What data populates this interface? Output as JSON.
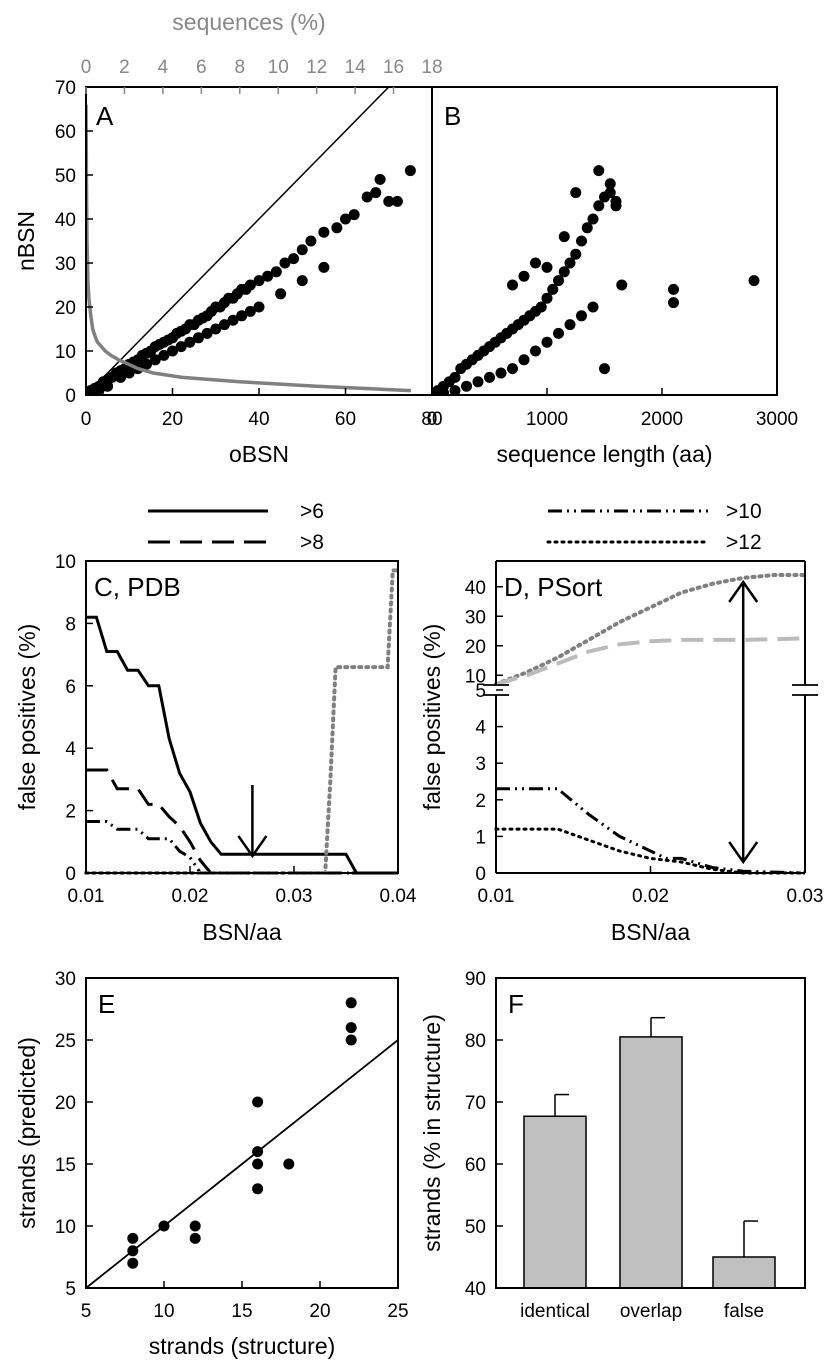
{
  "chart_data": [
    {
      "panel": "A",
      "type": "scatter",
      "label": "A",
      "xlabel": "oBSN",
      "ylabel": "nBSN",
      "top_xlabel": "sequences (%)",
      "xlim": [
        0,
        80
      ],
      "ylim": [
        0,
        70
      ],
      "top_xlim": [
        0,
        18
      ],
      "xticks": [
        0,
        20,
        40,
        60,
        80
      ],
      "yticks": [
        0,
        10,
        20,
        30,
        40,
        50,
        60,
        70
      ],
      "top_xticks": [
        0,
        2,
        4,
        6,
        8,
        10,
        12,
        14,
        16,
        18
      ],
      "reference_line": [
        [
          0,
          0
        ],
        [
          70,
          70
        ]
      ],
      "distribution_curve_color": "#808080",
      "distribution_curve": [
        [
          16.9,
          1
        ],
        [
          12,
          2
        ],
        [
          8,
          3
        ],
        [
          5,
          4
        ],
        [
          3.5,
          5
        ],
        [
          2.7,
          6
        ],
        [
          2.2,
          7
        ],
        [
          1.7,
          8
        ],
        [
          1.3,
          9
        ],
        [
          1.0,
          10
        ],
        [
          0.8,
          11
        ],
        [
          0.6,
          12
        ],
        [
          0.5,
          13
        ],
        [
          0.35,
          15
        ],
        [
          0.25,
          18
        ],
        [
          0.15,
          22
        ],
        [
          0.1,
          26
        ],
        [
          0.05,
          35
        ],
        [
          0.02,
          50
        ],
        [
          0.0,
          66
        ]
      ],
      "series": [
        {
          "x": [
            1,
            2,
            3,
            4,
            5,
            6,
            7,
            8,
            9,
            10,
            11,
            12,
            13,
            14,
            15,
            16,
            17,
            18,
            19,
            20,
            21,
            22,
            23,
            24,
            25,
            26,
            27,
            28,
            29,
            30,
            31,
            32,
            33,
            34,
            35,
            36,
            37,
            38,
            40,
            42,
            44,
            46,
            48,
            50,
            52,
            55,
            58,
            60,
            62,
            65,
            67,
            68,
            70,
            72,
            75,
            3,
            5,
            8,
            10,
            12,
            14,
            16,
            18,
            20,
            22,
            24,
            26,
            28,
            30,
            32,
            34,
            36,
            38,
            40,
            45,
            50,
            55
          ],
          "y": [
            1,
            1.5,
            2,
            3,
            3.5,
            4,
            5,
            5.5,
            6,
            7,
            7.5,
            8,
            9,
            9.5,
            10,
            11,
            11.5,
            12,
            12.5,
            13,
            14,
            14.5,
            15,
            16,
            16,
            17,
            17.5,
            18,
            19,
            20,
            20,
            21,
            22,
            22,
            23,
            24,
            24,
            25,
            26,
            27,
            28,
            30,
            31,
            33,
            35,
            37,
            38,
            40,
            41,
            45,
            46,
            49,
            44,
            44,
            51,
            1,
            2,
            4,
            5,
            6,
            7,
            8,
            9,
            10,
            11,
            12,
            13,
            14,
            15,
            16,
            17,
            18,
            19,
            20,
            23,
            26,
            29
          ]
        }
      ]
    },
    {
      "panel": "B",
      "type": "scatter",
      "label": "B",
      "xlabel": "sequence length (aa)",
      "xlim": [
        0,
        3000
      ],
      "ylim": [
        0,
        70
      ],
      "xticks": [
        0,
        1000,
        2000,
        3000
      ],
      "series": [
        {
          "x": [
            50,
            100,
            150,
            200,
            250,
            300,
            350,
            400,
            450,
            500,
            550,
            600,
            650,
            700,
            750,
            800,
            850,
            900,
            950,
            1000,
            1050,
            1100,
            1150,
            1200,
            1250,
            1300,
            1350,
            1400,
            1450,
            1500,
            1550,
            1600,
            1650,
            2100,
            2100,
            2800,
            100,
            200,
            300,
            400,
            500,
            600,
            700,
            800,
            900,
            1000,
            1100,
            1200,
            1300,
            1400,
            1450,
            1550,
            1600,
            1000,
            1150,
            1250,
            1500,
            700,
            800,
            900
          ],
          "y": [
            1,
            2,
            3,
            4,
            6,
            7,
            8,
            9,
            10,
            11,
            12,
            13,
            14,
            15,
            16,
            17,
            18,
            19,
            20,
            22,
            24,
            26,
            28,
            30,
            32,
            35,
            38,
            40,
            43,
            45,
            46,
            44,
            25,
            24,
            21,
            26,
            0.5,
            1,
            2,
            3,
            4,
            5,
            6,
            8,
            10,
            12,
            14,
            16,
            18,
            20,
            51,
            48,
            43,
            29,
            36,
            46,
            6,
            25,
            27,
            30
          ]
        }
      ]
    },
    {
      "panel": "C",
      "type": "line",
      "label": "C, PDB",
      "xlabel": "BSN/aa",
      "ylabel": "false positives (%)",
      "xlim": [
        0.01,
        0.04
      ],
      "ylim": [
        0,
        10
      ],
      "xticks": [
        "0.01",
        "0.02",
        "0.03",
        "0.04"
      ],
      "yticks": [
        0,
        2,
        4,
        6,
        8,
        10
      ],
      "arrow_x": 0.026,
      "legend": [
        {
          "name": ">6",
          "style": "solid"
        },
        {
          "name": ">8",
          "style": "dashed"
        },
        {
          "name": ">10",
          "style": "dashdotdot"
        },
        {
          "name": ">12",
          "style": "dotted"
        }
      ],
      "series": [
        {
          "name": ">6",
          "style": "solid",
          "color": "#000000",
          "points": [
            [
              0.01,
              8.2
            ],
            [
              0.011,
              8.2
            ],
            [
              0.012,
              7.1
            ],
            [
              0.013,
              7.1
            ],
            [
              0.014,
              6.5
            ],
            [
              0.015,
              6.5
            ],
            [
              0.016,
              6.0
            ],
            [
              0.017,
              6.0
            ],
            [
              0.018,
              4.3
            ],
            [
              0.019,
              3.2
            ],
            [
              0.02,
              2.6
            ],
            [
              0.021,
              1.6
            ],
            [
              0.022,
              1.0
            ],
            [
              0.023,
              0.6
            ],
            [
              0.035,
              0.6
            ],
            [
              0.036,
              0
            ],
            [
              0.04,
              0
            ]
          ]
        },
        {
          "name": ">8",
          "style": "dashed",
          "color": "#000000",
          "points": [
            [
              0.01,
              3.3
            ],
            [
              0.012,
              3.3
            ],
            [
              0.013,
              2.7
            ],
            [
              0.015,
              2.7
            ],
            [
              0.016,
              2.2
            ],
            [
              0.017,
              2.2
            ],
            [
              0.018,
              1.8
            ],
            [
              0.019,
              1.5
            ],
            [
              0.02,
              1.0
            ],
            [
              0.021,
              0.4
            ],
            [
              0.022,
              0
            ],
            [
              0.04,
              0
            ]
          ]
        },
        {
          "name": ">10",
          "style": "dashdotdot",
          "color": "#000000",
          "points": [
            [
              0.01,
              1.65
            ],
            [
              0.012,
              1.65
            ],
            [
              0.013,
              1.4
            ],
            [
              0.015,
              1.4
            ],
            [
              0.016,
              1.1
            ],
            [
              0.018,
              1.1
            ],
            [
              0.019,
              0.7
            ],
            [
              0.02,
              0.5
            ],
            [
              0.021,
              0
            ],
            [
              0.04,
              0
            ]
          ]
        },
        {
          "name": "gray dotted",
          "style": "dotted",
          "color": "#808080",
          "points": [
            [
              0.01,
              0
            ],
            [
              0.033,
              0
            ],
            [
              0.0335,
              3
            ],
            [
              0.034,
              6.6
            ],
            [
              0.039,
              6.6
            ],
            [
              0.0395,
              9.7
            ],
            [
              0.04,
              9.7
            ]
          ]
        }
      ]
    },
    {
      "panel": "D",
      "type": "line",
      "label": "D, PSort",
      "xlabel": "BSN/aa",
      "ylabel": "false positives (%)",
      "xlim": [
        0.01,
        0.03
      ],
      "lower_ylim": [
        0,
        5
      ],
      "upper_ylim": [
        5,
        45
      ],
      "xticks": [
        "0.01",
        "0.02",
        "0.03"
      ],
      "lower_yticks": [
        0,
        1,
        2,
        3,
        4,
        5
      ],
      "upper_yticks": [
        10,
        20,
        30,
        40
      ],
      "arrow_x": 0.026,
      "series": [
        {
          "name": ">10",
          "style": "dashdotdot",
          "color": "#000000",
          "points": [
            [
              0.01,
              2.3
            ],
            [
              0.014,
              2.3
            ],
            [
              0.016,
              1.6
            ],
            [
              0.018,
              1.0
            ],
            [
              0.02,
              0.6
            ],
            [
              0.021,
              0.4
            ],
            [
              0.022,
              0.4
            ],
            [
              0.024,
              0.15
            ],
            [
              0.026,
              0.05
            ],
            [
              0.03,
              0
            ]
          ]
        },
        {
          "name": ">12",
          "style": "dotted",
          "color": "#000000",
          "points": [
            [
              0.01,
              1.2
            ],
            [
              0.014,
              1.2
            ],
            [
              0.016,
              0.9
            ],
            [
              0.018,
              0.6
            ],
            [
              0.02,
              0.4
            ],
            [
              0.021,
              0.35
            ],
            [
              0.022,
              0.3
            ],
            [
              0.024,
              0.1
            ],
            [
              0.026,
              0
            ],
            [
              0.03,
              0
            ]
          ]
        },
        {
          "name": "upper gray dotted",
          "style": "dotted",
          "color": "#808080",
          "points": [
            [
              0.01,
              7
            ],
            [
              0.012,
              11
            ],
            [
              0.014,
              16
            ],
            [
              0.016,
              22
            ],
            [
              0.018,
              28
            ],
            [
              0.02,
              33
            ],
            [
              0.022,
              38
            ],
            [
              0.024,
              41
            ],
            [
              0.026,
              43
            ],
            [
              0.028,
              44
            ],
            [
              0.03,
              44
            ]
          ]
        },
        {
          "name": "upper light dashed",
          "style": "dashed",
          "color": "#bbbbbb",
          "points": [
            [
              0.01,
              7
            ],
            [
              0.012,
              10
            ],
            [
              0.014,
              14
            ],
            [
              0.016,
              18
            ],
            [
              0.018,
              20.5
            ],
            [
              0.02,
              21.5
            ],
            [
              0.022,
              22
            ],
            [
              0.026,
              22
            ],
            [
              0.03,
              22.5
            ]
          ]
        }
      ]
    },
    {
      "panel": "E",
      "type": "scatter",
      "label": "E",
      "xlabel": "strands (structure)",
      "ylabel": "strands (predicted)",
      "xlim": [
        5,
        25
      ],
      "ylim": [
        5,
        30
      ],
      "xticks": [
        5,
        10,
        15,
        20,
        25
      ],
      "yticks": [
        5,
        10,
        15,
        20,
        25,
        30
      ],
      "reference_line": [
        [
          5,
          5
        ],
        [
          25,
          25
        ]
      ],
      "series": [
        {
          "x": [
            8,
            8,
            8,
            10,
            12,
            12,
            16,
            16,
            16,
            16,
            18,
            22,
            22,
            22
          ],
          "y": [
            7,
            8,
            9,
            10,
            9,
            10,
            13,
            15,
            16,
            20,
            15,
            25,
            26,
            28
          ]
        }
      ]
    },
    {
      "panel": "F",
      "type": "bar",
      "label": "F",
      "ylabel": "strands (% in structure)",
      "ylim": [
        40,
        90
      ],
      "yticks": [
        40,
        50,
        60,
        70,
        80,
        90
      ],
      "categories": [
        "identical",
        "overlap",
        "false"
      ],
      "values": [
        67.7,
        80.5,
        45.0
      ],
      "errors": [
        3.5,
        3.1,
        5.8
      ],
      "bar_color": "#c0c0c0"
    }
  ]
}
